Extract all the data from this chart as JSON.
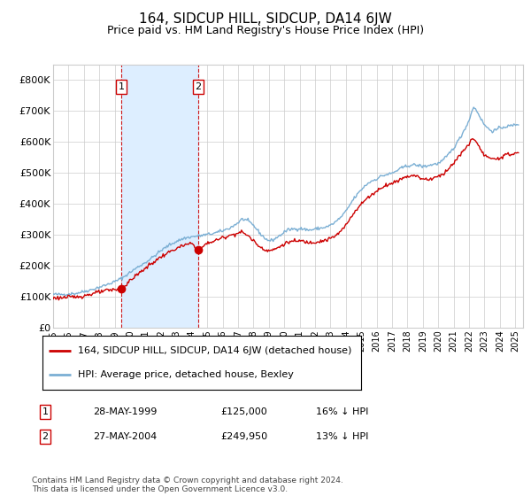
{
  "title": "164, SIDCUP HILL, SIDCUP, DA14 6JW",
  "subtitle": "Price paid vs. HM Land Registry's House Price Index (HPI)",
  "footer": "Contains HM Land Registry data © Crown copyright and database right 2024.\nThis data is licensed under the Open Government Licence v3.0.",
  "legend_line1": "164, SIDCUP HILL, SIDCUP, DA14 6JW (detached house)",
  "legend_line2": "HPI: Average price, detached house, Bexley",
  "purchases": [
    {
      "label": "1",
      "date": "28-MAY-1999",
      "price": 125000,
      "hpi_pct": "16% ↓ HPI",
      "x_year": 1999.42
    },
    {
      "label": "2",
      "date": "27-MAY-2004",
      "price": 249950,
      "hpi_pct": "13% ↓ HPI",
      "x_year": 2004.42
    }
  ],
  "shade_region": [
    1999.42,
    2004.42
  ],
  "red_color": "#cc0000",
  "blue_color": "#7bafd4",
  "shade_color": "#ddeeff",
  "grid_color": "#cccccc",
  "background_color": "#ffffff",
  "ylim": [
    0,
    850000
  ],
  "xlim_start": 1995.0,
  "xlim_end": 2025.5,
  "ytick_labels": [
    "£0",
    "£100K",
    "£200K",
    "£300K",
    "£400K",
    "£500K",
    "£600K",
    "£700K",
    "£800K"
  ],
  "ytick_values": [
    0,
    100000,
    200000,
    300000,
    400000,
    500000,
    600000,
    700000,
    800000
  ],
  "xtick_years": [
    1995,
    1996,
    1997,
    1998,
    1999,
    2000,
    2001,
    2002,
    2003,
    2004,
    2005,
    2006,
    2007,
    2008,
    2009,
    2010,
    2011,
    2012,
    2013,
    2014,
    2015,
    2016,
    2017,
    2018,
    2019,
    2020,
    2021,
    2022,
    2023,
    2024,
    2025
  ],
  "hpi_anchors": [
    [
      1995.0,
      107000
    ],
    [
      1995.5,
      106000
    ],
    [
      1996.0,
      108000
    ],
    [
      1996.5,
      110000
    ],
    [
      1997.0,
      116000
    ],
    [
      1997.5,
      122000
    ],
    [
      1998.0,
      130000
    ],
    [
      1998.5,
      138000
    ],
    [
      1999.0,
      148000
    ],
    [
      1999.5,
      160000
    ],
    [
      2000.0,
      178000
    ],
    [
      2000.5,
      195000
    ],
    [
      2001.0,
      210000
    ],
    [
      2001.5,
      228000
    ],
    [
      2002.0,
      248000
    ],
    [
      2002.5,
      265000
    ],
    [
      2003.0,
      278000
    ],
    [
      2003.5,
      288000
    ],
    [
      2004.0,
      293000
    ],
    [
      2004.5,
      296000
    ],
    [
      2005.0,
      300000
    ],
    [
      2005.5,
      305000
    ],
    [
      2006.0,
      312000
    ],
    [
      2006.5,
      322000
    ],
    [
      2007.0,
      338000
    ],
    [
      2007.25,
      350000
    ],
    [
      2007.5,
      348000
    ],
    [
      2007.75,
      340000
    ],
    [
      2008.0,
      330000
    ],
    [
      2008.25,
      315000
    ],
    [
      2008.5,
      300000
    ],
    [
      2008.75,
      288000
    ],
    [
      2009.0,
      280000
    ],
    [
      2009.25,
      282000
    ],
    [
      2009.5,
      290000
    ],
    [
      2009.75,
      298000
    ],
    [
      2010.0,
      308000
    ],
    [
      2010.25,
      315000
    ],
    [
      2010.5,
      318000
    ],
    [
      2010.75,
      318000
    ],
    [
      2011.0,
      320000
    ],
    [
      2011.25,
      318000
    ],
    [
      2011.5,
      315000
    ],
    [
      2011.75,
      315000
    ],
    [
      2012.0,
      318000
    ],
    [
      2012.25,
      320000
    ],
    [
      2012.5,
      322000
    ],
    [
      2012.75,
      325000
    ],
    [
      2013.0,
      330000
    ],
    [
      2013.25,
      338000
    ],
    [
      2013.5,
      348000
    ],
    [
      2013.75,
      360000
    ],
    [
      2014.0,
      375000
    ],
    [
      2014.25,
      395000
    ],
    [
      2014.5,
      415000
    ],
    [
      2014.75,
      430000
    ],
    [
      2015.0,
      445000
    ],
    [
      2015.25,
      458000
    ],
    [
      2015.5,
      468000
    ],
    [
      2015.75,
      475000
    ],
    [
      2016.0,
      480000
    ],
    [
      2016.25,
      488000
    ],
    [
      2016.5,
      492000
    ],
    [
      2016.75,
      495000
    ],
    [
      2017.0,
      498000
    ],
    [
      2017.25,
      505000
    ],
    [
      2017.5,
      512000
    ],
    [
      2017.75,
      518000
    ],
    [
      2018.0,
      522000
    ],
    [
      2018.25,
      525000
    ],
    [
      2018.5,
      525000
    ],
    [
      2018.75,
      523000
    ],
    [
      2019.0,
      520000
    ],
    [
      2019.25,
      522000
    ],
    [
      2019.5,
      525000
    ],
    [
      2019.75,
      528000
    ],
    [
      2020.0,
      530000
    ],
    [
      2020.25,
      538000
    ],
    [
      2020.5,
      550000
    ],
    [
      2020.75,
      565000
    ],
    [
      2021.0,
      580000
    ],
    [
      2021.25,
      600000
    ],
    [
      2021.5,
      620000
    ],
    [
      2021.75,
      645000
    ],
    [
      2022.0,
      668000
    ],
    [
      2022.17,
      700000
    ],
    [
      2022.33,
      712000
    ],
    [
      2022.5,
      700000
    ],
    [
      2022.67,
      685000
    ],
    [
      2022.83,
      668000
    ],
    [
      2023.0,
      655000
    ],
    [
      2023.25,
      642000
    ],
    [
      2023.5,
      635000
    ],
    [
      2023.75,
      638000
    ],
    [
      2024.0,
      645000
    ],
    [
      2024.25,
      648000
    ],
    [
      2024.5,
      650000
    ],
    [
      2024.75,
      652000
    ],
    [
      2025.2,
      658000
    ]
  ],
  "pp_anchors": [
    [
      1995.0,
      95000
    ],
    [
      1995.5,
      96000
    ],
    [
      1996.0,
      97000
    ],
    [
      1996.5,
      99000
    ],
    [
      1997.0,
      102000
    ],
    [
      1997.5,
      108000
    ],
    [
      1998.0,
      114000
    ],
    [
      1998.5,
      119000
    ],
    [
      1999.0,
      122000
    ],
    [
      1999.42,
      125000
    ],
    [
      1999.75,
      138000
    ],
    [
      2000.0,
      152000
    ],
    [
      2000.5,
      172000
    ],
    [
      2001.0,
      192000
    ],
    [
      2001.5,
      210000
    ],
    [
      2002.0,
      228000
    ],
    [
      2002.5,
      242000
    ],
    [
      2003.0,
      255000
    ],
    [
      2003.5,
      265000
    ],
    [
      2004.0,
      272000
    ],
    [
      2004.42,
      249950
    ],
    [
      2004.75,
      262000
    ],
    [
      2005.0,
      272000
    ],
    [
      2005.5,
      280000
    ],
    [
      2006.0,
      290000
    ],
    [
      2006.5,
      298000
    ],
    [
      2007.0,
      305000
    ],
    [
      2007.25,
      308000
    ],
    [
      2007.5,
      302000
    ],
    [
      2007.75,
      292000
    ],
    [
      2008.0,
      280000
    ],
    [
      2008.25,
      268000
    ],
    [
      2008.5,
      258000
    ],
    [
      2008.75,
      252000
    ],
    [
      2009.0,
      248000
    ],
    [
      2009.25,
      250000
    ],
    [
      2009.5,
      255000
    ],
    [
      2009.75,
      262000
    ],
    [
      2010.0,
      270000
    ],
    [
      2010.25,
      275000
    ],
    [
      2010.5,
      278000
    ],
    [
      2010.75,
      278000
    ],
    [
      2011.0,
      280000
    ],
    [
      2011.25,
      278000
    ],
    [
      2011.5,
      275000
    ],
    [
      2011.75,
      275000
    ],
    [
      2012.0,
      276000
    ],
    [
      2012.25,
      278000
    ],
    [
      2012.5,
      280000
    ],
    [
      2012.75,
      283000
    ],
    [
      2013.0,
      287000
    ],
    [
      2013.25,
      294000
    ],
    [
      2013.5,
      302000
    ],
    [
      2013.75,
      315000
    ],
    [
      2014.0,
      330000
    ],
    [
      2014.25,
      350000
    ],
    [
      2014.5,
      370000
    ],
    [
      2014.75,
      385000
    ],
    [
      2015.0,
      398000
    ],
    [
      2015.25,
      412000
    ],
    [
      2015.5,
      422000
    ],
    [
      2015.75,
      432000
    ],
    [
      2016.0,
      440000
    ],
    [
      2016.25,
      450000
    ],
    [
      2016.5,
      458000
    ],
    [
      2016.75,
      462000
    ],
    [
      2017.0,
      465000
    ],
    [
      2017.25,
      472000
    ],
    [
      2017.5,
      478000
    ],
    [
      2017.75,
      484000
    ],
    [
      2018.0,
      488000
    ],
    [
      2018.25,
      492000
    ],
    [
      2018.5,
      490000
    ],
    [
      2018.75,
      486000
    ],
    [
      2019.0,
      480000
    ],
    [
      2019.25,
      478000
    ],
    [
      2019.5,
      480000
    ],
    [
      2019.75,
      484000
    ],
    [
      2020.0,
      488000
    ],
    [
      2020.25,
      495000
    ],
    [
      2020.5,
      505000
    ],
    [
      2020.75,
      518000
    ],
    [
      2021.0,
      530000
    ],
    [
      2021.25,
      548000
    ],
    [
      2021.5,
      562000
    ],
    [
      2021.75,
      578000
    ],
    [
      2022.0,
      592000
    ],
    [
      2022.17,
      608000
    ],
    [
      2022.33,
      612000
    ],
    [
      2022.5,
      598000
    ],
    [
      2022.67,
      580000
    ],
    [
      2022.83,
      566000
    ],
    [
      2023.0,
      558000
    ],
    [
      2023.25,
      548000
    ],
    [
      2023.5,
      542000
    ],
    [
      2023.75,
      545000
    ],
    [
      2024.0,
      550000
    ],
    [
      2024.25,
      554000
    ],
    [
      2024.5,
      558000
    ],
    [
      2024.75,
      560000
    ],
    [
      2025.2,
      565000
    ]
  ]
}
